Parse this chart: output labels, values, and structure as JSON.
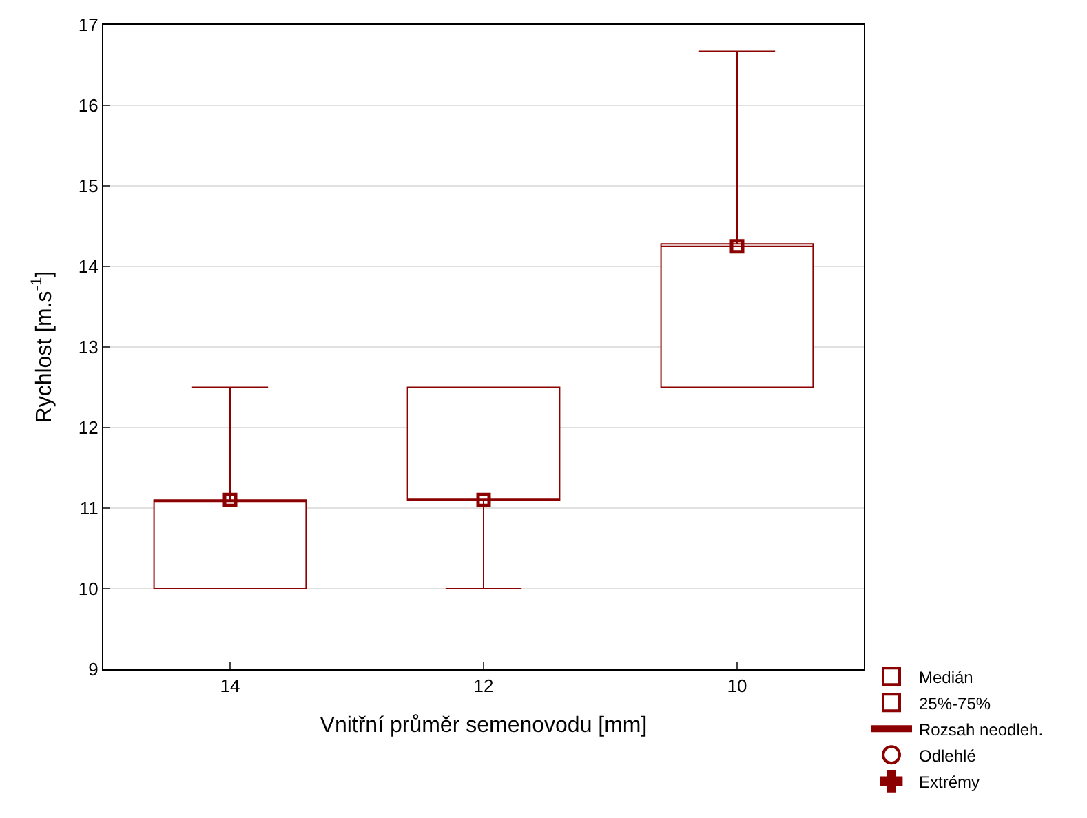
{
  "chart_data": {
    "type": "box",
    "xlabel": "Vnitřní průměr semenovodu [mm]",
    "ylabel": "Rychlost [m.s$^{-1}$]",
    "categories": [
      "14",
      "12",
      "10"
    ],
    "ylim": [
      9,
      17
    ],
    "yticks": [
      9,
      10,
      11,
      12,
      13,
      14,
      15,
      16,
      17
    ],
    "grid": "y",
    "legend": "bottom right",
    "series": [
      {
        "name": "Medián",
        "type": "scatter",
        "marker": "square",
        "color": "#8b0000",
        "values": [
          11.1,
          11.1,
          14.25
        ]
      },
      {
        "name": "25%-75%",
        "color": "#8b0000",
        "boxes": [
          {
            "low": 10,
            "q1": 10,
            "median": 11.1,
            "q3": 11.1,
            "high": 12.5
          },
          {
            "low": 10,
            "q1": 11.1,
            "median": 11.1,
            "q3": 12.5,
            "high": 12.5
          },
          {
            "low": 12.5,
            "q1": 12.5,
            "median": 14.25,
            "q3": 14.28,
            "high": 16.67
          }
        ]
      },
      {
        "name": "Rozsah neodleh.",
        "type": "line",
        "marker": "none",
        "color": "#8b0000",
        "values": [
          null,
          null,
          null
        ]
      },
      {
        "name": "Odlehlé",
        "type": "scatter",
        "marker": "circle",
        "color": "#8b0000",
        "values": [
          null,
          null,
          null
        ]
      },
      {
        "name": "Extrémy",
        "type": "scatter",
        "marker": "cross",
        "color": "#8b0000",
        "values": [
          null,
          null,
          null
        ]
      }
    ]
  }
}
